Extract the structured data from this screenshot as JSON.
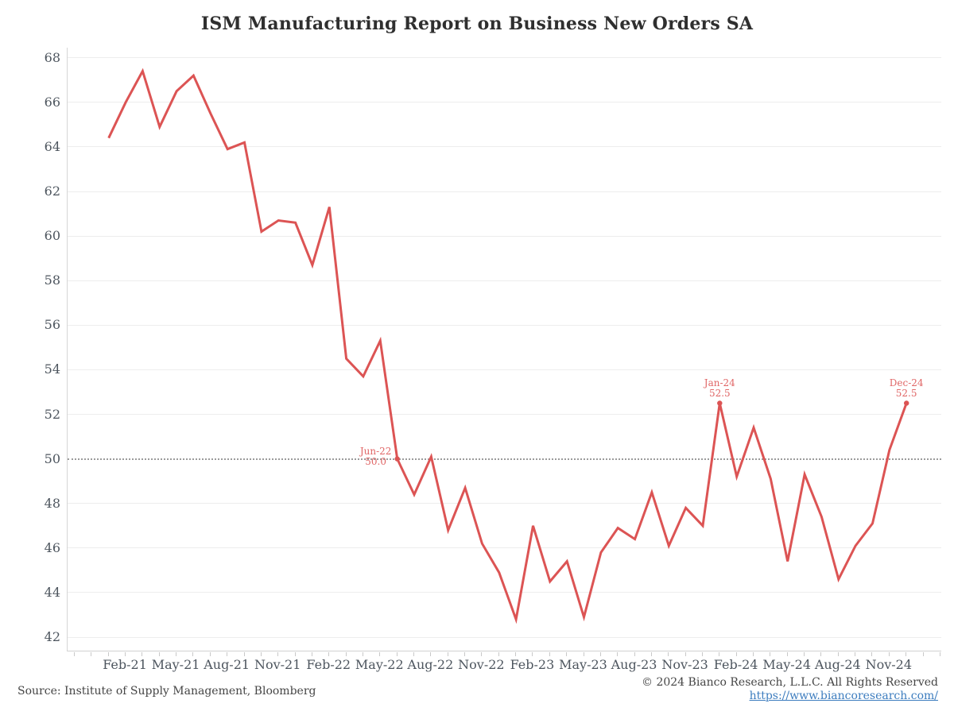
{
  "title": "ISM Manufacturing Report on Business New Orders SA",
  "footer": {
    "source": "Source: Institute of Supply Management, Bloomberg",
    "copyright": "© 2024 Bianco Research, L.L.C. All Rights Reserved",
    "link": "https://www.biancoresearch.com/"
  },
  "chart_data": {
    "type": "line",
    "title": "ISM Manufacturing Report on Business New Orders SA",
    "xlabel": "",
    "ylabel": "",
    "ylim": [
      42,
      68
    ],
    "ytick_step": 2,
    "yticks": [
      42,
      44,
      46,
      48,
      50,
      52,
      54,
      56,
      58,
      60,
      62,
      64,
      66,
      68
    ],
    "grid": true,
    "legend": false,
    "reference_line": 50,
    "x": [
      "Jan-21",
      "Feb-21",
      "Mar-21",
      "Apr-21",
      "May-21",
      "Jun-21",
      "Jul-21",
      "Aug-21",
      "Sep-21",
      "Oct-21",
      "Nov-21",
      "Dec-21",
      "Jan-22",
      "Feb-22",
      "Mar-22",
      "Apr-22",
      "May-22",
      "Jun-22",
      "Jul-22",
      "Aug-22",
      "Sep-22",
      "Oct-22",
      "Nov-22",
      "Dec-22",
      "Jan-23",
      "Feb-23",
      "Mar-23",
      "Apr-23",
      "May-23",
      "Jun-23",
      "Jul-23",
      "Aug-23",
      "Sep-23",
      "Oct-23",
      "Nov-23",
      "Dec-23",
      "Jan-24",
      "Feb-24",
      "Mar-24",
      "Apr-24",
      "May-24",
      "Jun-24",
      "Jul-24",
      "Aug-24",
      "Sep-24",
      "Oct-24",
      "Nov-24",
      "Dec-24"
    ],
    "values": [
      64.4,
      66.0,
      67.4,
      64.9,
      66.5,
      67.2,
      65.5,
      63.9,
      64.2,
      60.2,
      60.7,
      60.6,
      58.7,
      61.3,
      54.5,
      53.7,
      55.3,
      50.0,
      48.4,
      50.1,
      46.8,
      48.7,
      46.2,
      44.9,
      42.8,
      47.0,
      44.5,
      45.4,
      42.9,
      45.8,
      46.9,
      46.4,
      48.5,
      46.1,
      47.8,
      47.0,
      52.5,
      49.2,
      51.4,
      49.1,
      45.4,
      49.3,
      47.4,
      44.6,
      46.1,
      47.1,
      50.4,
      52.5
    ],
    "xtick_labels": [
      "Feb-21",
      "May-21",
      "Aug-21",
      "Nov-21",
      "Feb-22",
      "May-22",
      "Aug-22",
      "Nov-22",
      "Feb-23",
      "May-23",
      "Aug-23",
      "Nov-23",
      "Feb-24",
      "May-24",
      "Aug-24",
      "Nov-24"
    ],
    "annotations": [
      {
        "month": "Jun-22",
        "value": 50.0,
        "label_line1": "Jun-22",
        "label_line2": "50.0",
        "placement": "left"
      },
      {
        "month": "Jan-24",
        "value": 52.5,
        "label_line1": "Jan-24",
        "label_line2": "52.5",
        "placement": "above"
      },
      {
        "month": "Dec-24",
        "value": 52.5,
        "label_line1": "Dec-24",
        "label_line2": "52.5",
        "placement": "above"
      }
    ],
    "colors": {
      "line": "#dc5454",
      "annotation": "#e06666",
      "reference_line": "#9b9b9b",
      "grid": "#ededed",
      "axis": "#d4d4d4",
      "tick": "#c9c9c9",
      "label": "#4d555e",
      "title": "#2f2f2f",
      "footer_text": "#454545",
      "link": "#3d7dbf"
    }
  }
}
